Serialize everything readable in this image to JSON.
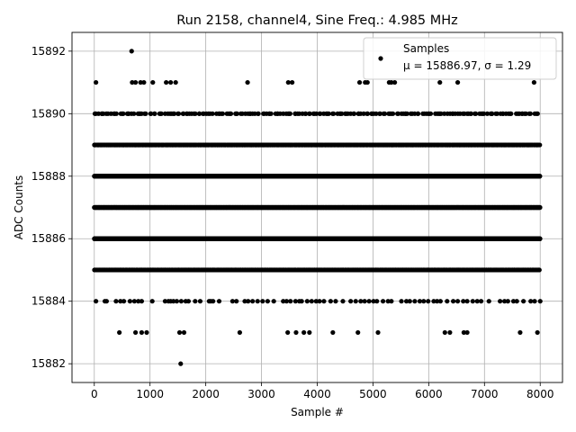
{
  "chart_data": {
    "type": "scatter",
    "title": "Run 2158, channel4, Sine Freq.: 4.985 MHz",
    "xlabel": "Sample #",
    "ylabel": "ADC Counts",
    "xlim": [
      -400,
      8400
    ],
    "ylim": [
      15881.4,
      15892.6
    ],
    "x_ticks": [
      0,
      1000,
      2000,
      3000,
      4000,
      5000,
      6000,
      7000,
      8000
    ],
    "y_ticks": [
      15882,
      15884,
      15886,
      15888,
      15890,
      15892
    ],
    "grid": true,
    "legend": {
      "placement": "top-right",
      "series_name": "Samples",
      "stats_line": "μ = 15886.97, σ = 1.29"
    },
    "marker_color": "#000000",
    "series": [
      {
        "name": "Samples",
        "levels": [
          {
            "y": 15882,
            "x": [
              1550
            ]
          },
          {
            "y": 15883,
            "x": [
              450,
              740,
              850,
              940,
              1530,
              1610,
              2610,
              3470,
              3620,
              3760,
              3860,
              4280,
              4730,
              5090,
              6290,
              6380,
              6630,
              6690,
              7640,
              7950
            ]
          },
          {
            "y": 15884,
            "x": [
              30,
              190,
              220,
              390,
              470,
              530,
              640,
              720,
              790,
              850,
              1040,
              1270,
              1330,
              1370,
              1420,
              1480,
              1560,
              1640,
              1690,
              1810,
              1900,
              2060,
              2090,
              2130,
              2240,
              2480,
              2550,
              2700,
              2760,
              2840,
              2930,
              3020,
              3110,
              3220,
              3390,
              3450,
              3520,
              3610,
              3680,
              3720,
              3820,
              3900,
              3980,
              4040,
              4120,
              4240,
              4330,
              4460,
              4600,
              4690,
              4780,
              4850,
              4930,
              5010,
              5070,
              5180,
              5270,
              5330,
              5510,
              5600,
              5660,
              5750,
              5840,
              5910,
              5990,
              6090,
              6150,
              6210,
              6330,
              6440,
              6520,
              6620,
              6690,
              6790,
              6870,
              6940,
              7080,
              7280,
              7360,
              7420,
              7520,
              7580,
              7700,
              7830,
              7900,
              8000
            ]
          },
          {
            "y": 15891,
            "x": [
              30,
              680,
              740,
              830,
              890,
              1050,
              1290,
              1370,
              1460,
              2750,
              3480,
              3550,
              4760,
              4860,
              4900,
              5290,
              5330,
              5390,
              6200,
              6520,
              7890
            ]
          },
          {
            "y": 15892,
            "x": [
              670
            ]
          }
        ],
        "dense_levels": [
          {
            "y": 15885,
            "x_range": [
              0,
              8000
            ],
            "approx_count": 900
          },
          {
            "y": 15886,
            "x_range": [
              0,
              8000
            ],
            "approx_count": 2600
          },
          {
            "y": 15887,
            "x_range": [
              0,
              8000
            ],
            "approx_count": 2100
          },
          {
            "y": 15888,
            "x_range": [
              0,
              8000
            ],
            "approx_count": 1700
          },
          {
            "y": 15889,
            "x_range": [
              0,
              8000
            ],
            "approx_count": 700
          },
          {
            "y": 15890,
            "x_range": [
              0,
              8000
            ],
            "approx_count": 210
          }
        ]
      }
    ]
  }
}
